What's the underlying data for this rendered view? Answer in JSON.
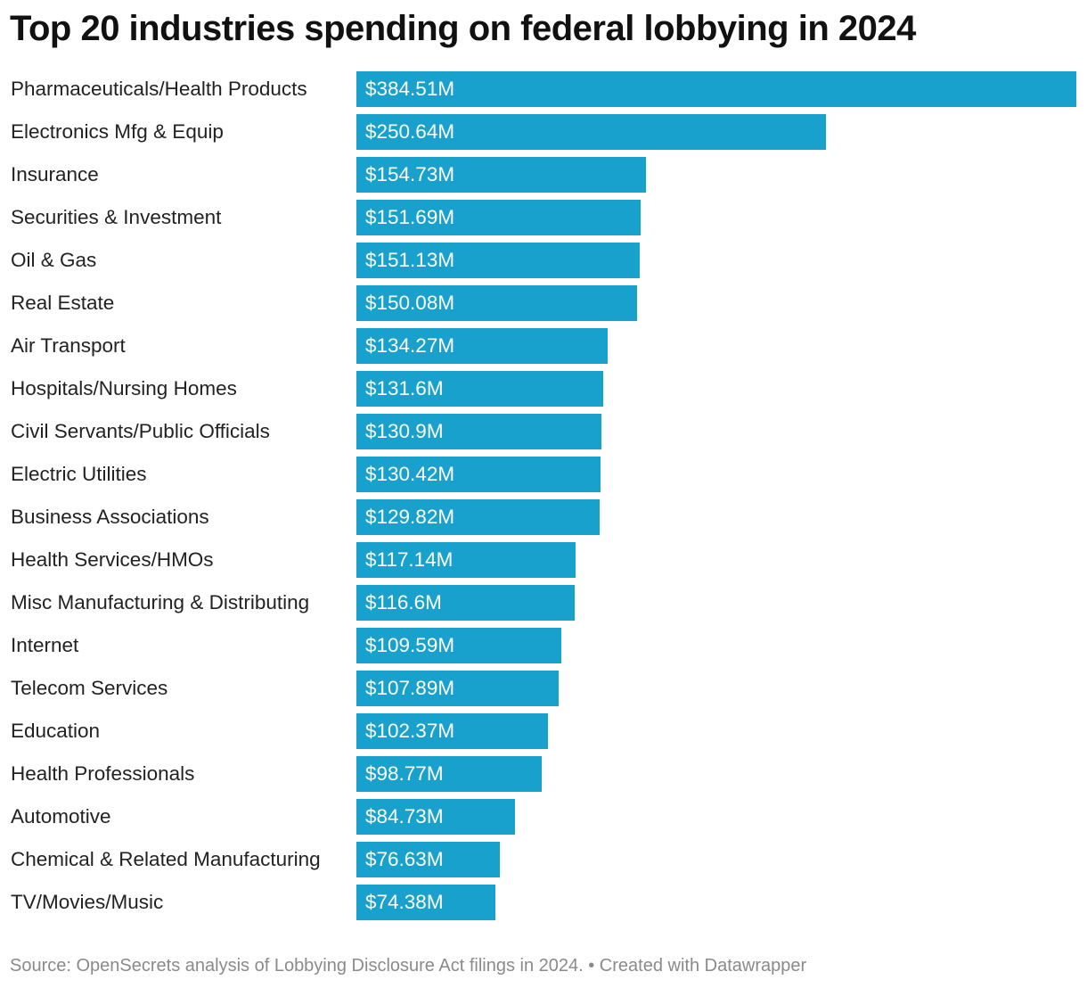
{
  "chart_data": {
    "type": "bar",
    "orientation": "horizontal",
    "title": "Top 20 industries spending on federal lobbying in 2024",
    "categories": [
      "Pharmaceuticals/Health Products",
      "Electronics Mfg & Equip",
      "Insurance",
      "Securities & Investment",
      "Oil & Gas",
      "Real Estate",
      "Air Transport",
      "Hospitals/Nursing Homes",
      "Civil Servants/Public Officials",
      "Electric Utilities",
      "Business Associations",
      "Health Services/HMOs",
      "Misc Manufacturing & Distributing",
      "Internet",
      "Telecom Services",
      "Education",
      "Health Professionals",
      "Automotive",
      "Chemical & Related Manufacturing",
      "TV/Movies/Music"
    ],
    "values": [
      384.51,
      250.64,
      154.73,
      151.69,
      151.13,
      150.08,
      134.27,
      131.6,
      130.9,
      130.42,
      129.82,
      117.14,
      116.6,
      109.59,
      107.89,
      102.37,
      98.77,
      84.73,
      76.63,
      74.38
    ],
    "value_labels": [
      "$384.51M",
      "$250.64M",
      "$154.73M",
      "$151.69M",
      "$151.13M",
      "$150.08M",
      "$134.27M",
      "$131.6M",
      "$130.9M",
      "$130.42M",
      "$129.82M",
      "$117.14M",
      "$116.6M",
      "$109.59M",
      "$107.89M",
      "$102.37M",
      "$98.77M",
      "$84.73M",
      "$76.63M",
      "$74.38M"
    ],
    "unit": "USD millions",
    "xlabel": "",
    "ylabel": "",
    "xlim": [
      0,
      384.51
    ],
    "grid": false,
    "bar_color": "#18a1cd"
  },
  "footer": {
    "source": "Source: OpenSecrets analysis of Lobbying Disclosure Act filings in 2024. • Created with Datawrapper"
  }
}
